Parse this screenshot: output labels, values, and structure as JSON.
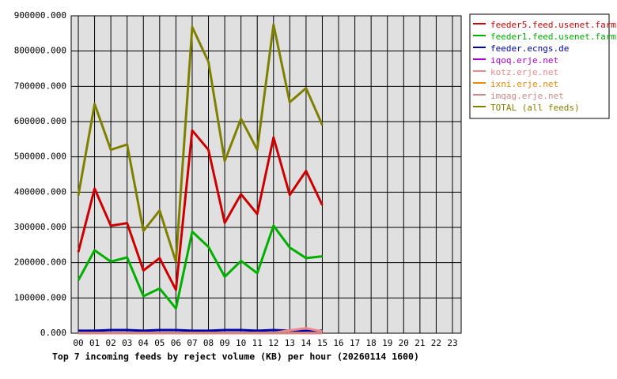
{
  "chart_data": {
    "type": "line",
    "title": "Top 7 incoming feeds by reject volume (KB) per hour (20260114 1600)",
    "categories": [
      "00",
      "01",
      "02",
      "03",
      "04",
      "05",
      "06",
      "07",
      "08",
      "09",
      "10",
      "11",
      "12",
      "13",
      "14",
      "15",
      "16",
      "17",
      "18",
      "19",
      "20",
      "21",
      "22",
      "23"
    ],
    "ylim": [
      0,
      900000
    ],
    "yticks": [
      {
        "value": 0,
        "label": "0.000"
      },
      {
        "value": 100000,
        "label": "100000.000"
      },
      {
        "value": 200000,
        "label": "200000.000"
      },
      {
        "value": 300000,
        "label": "300000.000"
      },
      {
        "value": 400000,
        "label": "400000.000"
      },
      {
        "value": 500000,
        "label": "500000.000"
      },
      {
        "value": 600000,
        "label": "600000.000"
      },
      {
        "value": 700000,
        "label": "700000.000"
      },
      {
        "value": 800000,
        "label": "800000.000"
      },
      {
        "value": 900000,
        "label": "900000.000"
      }
    ],
    "grid": true,
    "legend": "right",
    "series": [
      {
        "name": "feeder5.feed.usenet.farm",
        "color": "#cc0000",
        "values": [
          230000,
          410000,
          305000,
          312000,
          178000,
          213000,
          123000,
          575000,
          520000,
          313000,
          394000,
          338000,
          555000,
          392000,
          460000,
          363000,
          null,
          null,
          null,
          null,
          null,
          null,
          null,
          null
        ]
      },
      {
        "name": "feeder1.feed.usenet.farm",
        "color": "#00b000",
        "values": [
          150000,
          235000,
          203000,
          215000,
          105000,
          127000,
          70000,
          288000,
          245000,
          160000,
          205000,
          170000,
          305000,
          243000,
          213000,
          218000,
          null,
          null,
          null,
          null,
          null,
          null,
          null,
          null
        ]
      },
      {
        "name": "feeder.ecngs.de",
        "color": "#0000aa",
        "values": [
          7000,
          7000,
          9000,
          9000,
          7000,
          9000,
          9000,
          7000,
          7000,
          9000,
          9000,
          7000,
          9000,
          7000,
          6000,
          7000,
          null,
          null,
          null,
          null,
          null,
          null,
          null,
          null
        ]
      },
      {
        "name": "iqoq.erje.net",
        "color": "#aa00cc",
        "values": [
          1000,
          1000,
          1000,
          1000,
          1000,
          1000,
          1000,
          1000,
          1000,
          1000,
          1000,
          1000,
          1000,
          1000,
          1000,
          1000,
          null,
          null,
          null,
          null,
          null,
          null,
          null,
          null
        ]
      },
      {
        "name": "kotz.erje.net",
        "color": "#ee8888",
        "values": [
          1000,
          1000,
          1000,
          1000,
          1000,
          1000,
          1000,
          1000,
          1000,
          1000,
          1000,
          1000,
          1000,
          8000,
          14000,
          5000,
          null,
          null,
          null,
          null,
          null,
          null,
          null,
          null
        ]
      },
      {
        "name": "ixni.erje.net",
        "color": "#ee8800",
        "values": [
          500,
          500,
          500,
          500,
          500,
          500,
          500,
          500,
          500,
          500,
          500,
          500,
          500,
          500,
          500,
          500,
          null,
          null,
          null,
          null,
          null,
          null,
          null,
          null
        ]
      },
      {
        "name": "imqag.erje.net",
        "color": "#cc8888",
        "values": [
          500,
          500,
          500,
          500,
          500,
          500,
          500,
          500,
          500,
          500,
          500,
          500,
          500,
          500,
          500,
          500,
          null,
          null,
          null,
          null,
          null,
          null,
          null,
          null
        ]
      },
      {
        "name": "TOTAL (all feeds)",
        "color": "#808000",
        "values": [
          390000,
          650000,
          520000,
          535000,
          290000,
          348000,
          203000,
          868000,
          770000,
          488000,
          608000,
          520000,
          875000,
          655000,
          695000,
          590000,
          null,
          null,
          null,
          null,
          null,
          null,
          null,
          null
        ]
      }
    ]
  }
}
